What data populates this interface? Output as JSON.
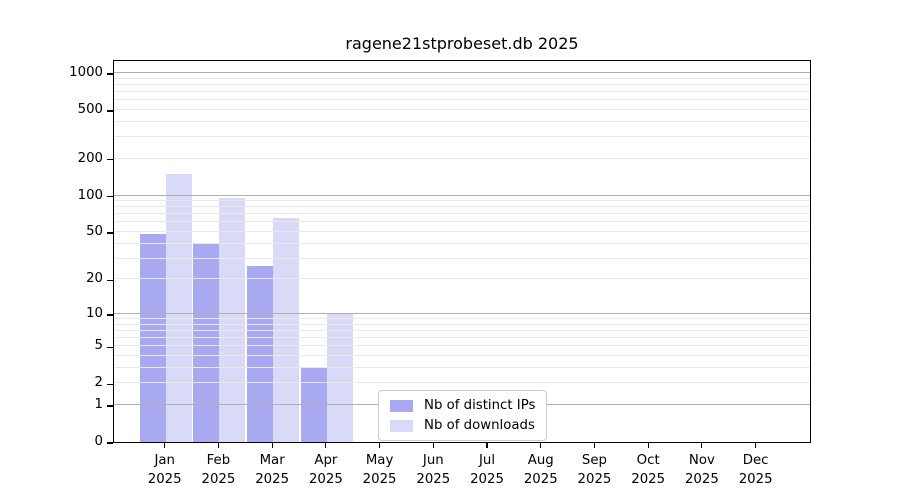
{
  "chart_data": {
    "type": "bar",
    "title": "ragene21stprobeset.db 2025",
    "categories": [
      "Jan",
      "Feb",
      "Mar",
      "Apr",
      "May",
      "Jun",
      "Jul",
      "Aug",
      "Sep",
      "Oct",
      "Nov",
      "Dec"
    ],
    "x_year_line": "2025",
    "series": [
      {
        "name": "Nb of distinct IPs",
        "color": "#a9a9f2",
        "values": [
          48,
          40,
          26,
          3,
          0,
          0,
          0,
          0,
          0,
          0,
          0,
          0
        ]
      },
      {
        "name": "Nb of downloads",
        "color": "#d9d9f8",
        "values": [
          150,
          95,
          65,
          10,
          0,
          0,
          0,
          0,
          0,
          0,
          0,
          0
        ]
      }
    ],
    "yscale": "log1p",
    "ylim": [
      0,
      1300
    ],
    "yticks": [
      0,
      1,
      2,
      5,
      10,
      20,
      50,
      100,
      200,
      500,
      1000
    ],
    "grid": {
      "major_at": [
        1,
        10,
        100,
        1000
      ],
      "major_color": "#b0b0b0",
      "minor_color": "#e9e9e9"
    },
    "legend_position": "lower center",
    "axis_color": "#000000",
    "background_color": "#ffffff"
  }
}
